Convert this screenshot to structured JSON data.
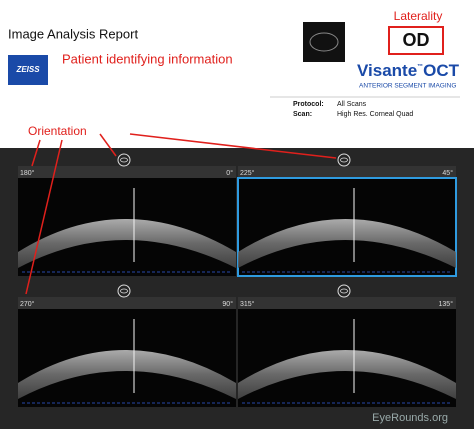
{
  "header": {
    "title": "Image Analysis Report",
    "patient_info": "Patient identifying information",
    "logo": "ZEISS",
    "laterality_label": "Laterality",
    "laterality": "OD",
    "brand": "Visante",
    "trademark": "™",
    "brand_suffix": "OCT",
    "brand_tagline": "ANTERIOR SEGMENT IMAGING"
  },
  "protocol": {
    "rows": [
      [
        "Protocol:",
        "All Scans"
      ],
      [
        "Scan:",
        "High Res. Corneal Quad"
      ]
    ]
  },
  "annotation": "Orientation",
  "scans": [
    {
      "start": "180°",
      "end": "0°"
    },
    {
      "start": "225°",
      "end": "45°"
    },
    {
      "start": "270°",
      "end": "90°"
    },
    {
      "start": "315°",
      "end": "135°"
    }
  ],
  "watermark": "EyeRounds.org"
}
